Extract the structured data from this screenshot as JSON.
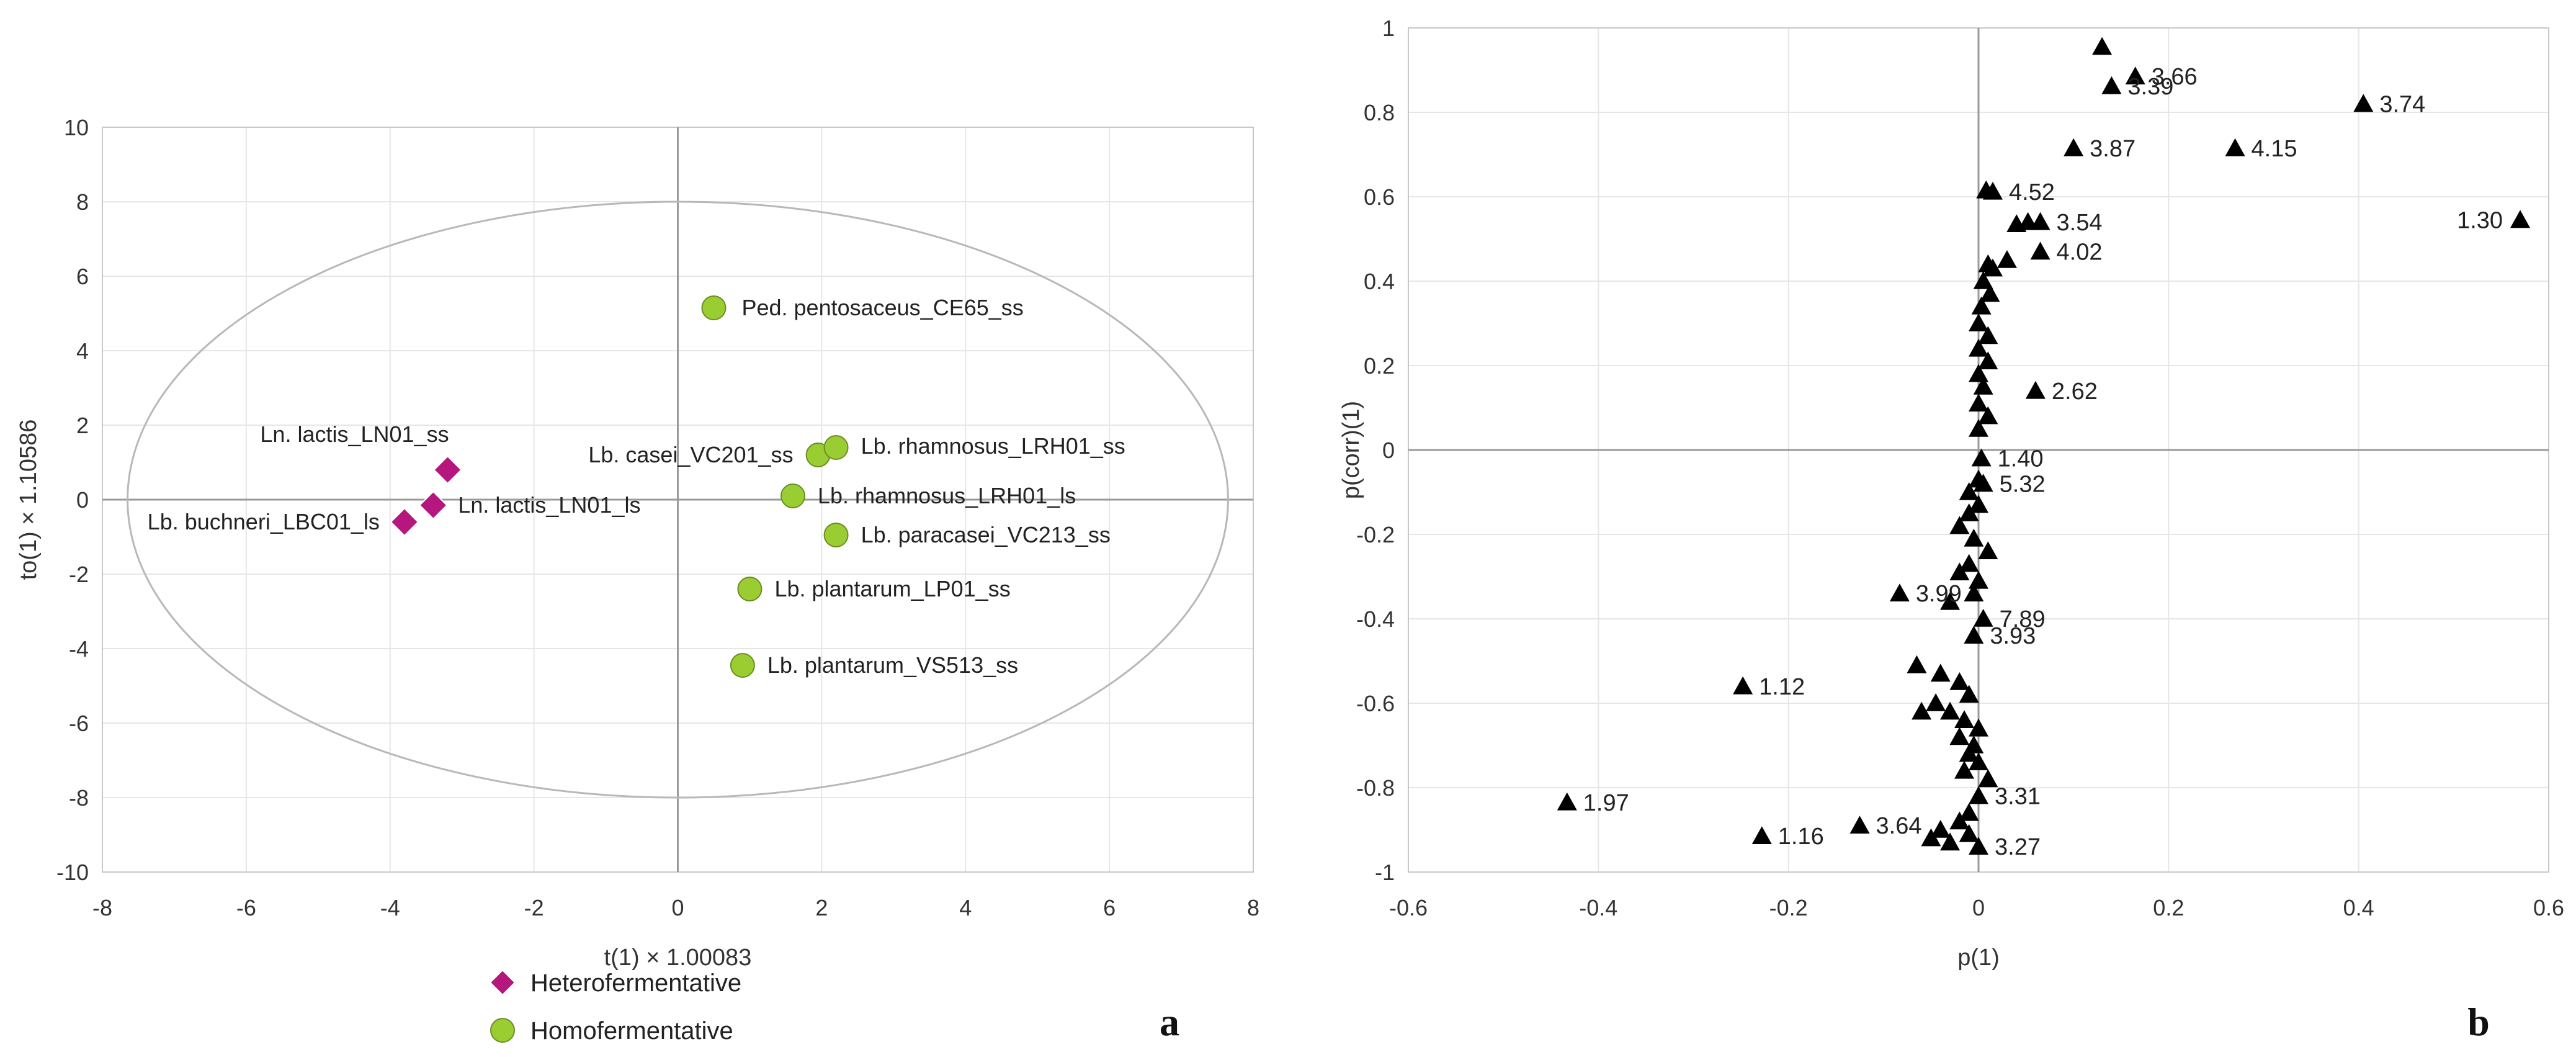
{
  "chart_data": [
    {
      "type": "scatter",
      "panel_letter": "a",
      "xlabel": "t(1) × 1.00083",
      "ylabel": "to(1) × 1.10586",
      "xlim": [
        -8,
        8
      ],
      "ylim": [
        -10,
        10
      ],
      "xticks": [
        -8,
        -6,
        -4,
        -2,
        0,
        2,
        4,
        6,
        8
      ],
      "yticks": [
        -10,
        -8,
        -6,
        -4,
        -2,
        0,
        2,
        4,
        6,
        8,
        10
      ],
      "grid": true,
      "ellipse": {
        "rx": 7.65,
        "ry": 8
      },
      "legend_position": "bottom",
      "series": [
        {
          "name": "Heterofermentative",
          "marker": "diamond",
          "color": "#b5177e",
          "points": [
            {
              "label": "Ln. lactis_LN01_ss",
              "x": -3.2,
              "y": 0.8
            },
            {
              "label": "Ln. lactis_LN01_ls",
              "x": -3.4,
              "y": -0.15
            },
            {
              "label": "Lb. buchneri_LBC01_ls",
              "x": -3.8,
              "y": -0.6
            }
          ]
        },
        {
          "name": "Homofermentative",
          "marker": "circle",
          "color": "#9acd32",
          "points": [
            {
              "label": "Ped. pentosaceus_CE65_ss",
              "x": 0.5,
              "y": 5.15
            },
            {
              "label": "Lb. casei_VC201_ss",
              "x": 1.95,
              "y": 1.2
            },
            {
              "label": "Lb. rhamnosus_LRH01_ss",
              "x": 2.2,
              "y": 1.4
            },
            {
              "label": "Lb. rhamnosus_LRH01_ls",
              "x": 1.6,
              "y": 0.1
            },
            {
              "label": "Lb. paracasei_VC213_ss",
              "x": 2.2,
              "y": -0.95
            },
            {
              "label": "Lb. plantarum_LP01_ss",
              "x": 1.0,
              "y": -2.4
            },
            {
              "label": "Lb. plantarum_VS513_ss",
              "x": 0.9,
              "y": -4.45
            }
          ]
        }
      ]
    },
    {
      "type": "scatter",
      "panel_letter": "b",
      "xlabel": "p(1)",
      "ylabel": "p(corr)(1)",
      "xlim": [
        -0.6,
        0.6
      ],
      "ylim": [
        -1,
        1
      ],
      "xticks": [
        -0.6,
        -0.4,
        -0.2,
        0,
        0.2,
        0.4,
        0.6
      ],
      "yticks": [
        -1,
        -0.8,
        -0.6,
        -0.4,
        -0.2,
        0,
        0.2,
        0.4,
        0.6,
        0.8,
        1
      ],
      "marker": "triangle",
      "color": "#000000",
      "labeled_points": [
        {
          "label": "3.66",
          "x": 0.165,
          "y": 0.885
        },
        {
          "label": "3.39",
          "x": 0.14,
          "y": 0.862
        },
        {
          "label": "3.74",
          "x": 0.405,
          "y": 0.82
        },
        {
          "label": "3.87",
          "x": 0.1,
          "y": 0.715
        },
        {
          "label": "4.15",
          "x": 0.27,
          "y": 0.715
        },
        {
          "label": "4.52",
          "x": 0.015,
          "y": 0.612
        },
        {
          "label": "1.30",
          "x": 0.57,
          "y": 0.545
        },
        {
          "label": "3.54",
          "x": 0.065,
          "y": 0.54
        },
        {
          "label": "4.02",
          "x": 0.065,
          "y": 0.47
        },
        {
          "label": "2.62",
          "x": 0.06,
          "y": 0.14
        },
        {
          "label": "1.40",
          "x": 0.003,
          "y": -0.02
        },
        {
          "label": "5.32",
          "x": 0.005,
          "y": -0.08
        },
        {
          "label": "3.99",
          "x": -0.083,
          "y": -0.34
        },
        {
          "label": "7.89",
          "x": 0.005,
          "y": -0.4
        },
        {
          "label": "3.93",
          "x": -0.005,
          "y": -0.44
        },
        {
          "label": "1.12",
          "x": -0.248,
          "y": -0.56
        },
        {
          "label": "1.97",
          "x": -0.433,
          "y": -0.835
        },
        {
          "label": "3.31",
          "x": 0.0,
          "y": -0.82
        },
        {
          "label": "3.64",
          "x": -0.125,
          "y": -0.89
        },
        {
          "label": "1.16",
          "x": -0.228,
          "y": -0.915
        },
        {
          "label": "3.27",
          "x": 0.0,
          "y": -0.94
        }
      ],
      "unlabeled_points": [
        {
          "x": 0.13,
          "y": 0.955
        },
        {
          "x": 0.008,
          "y": 0.615
        },
        {
          "x": 0.04,
          "y": 0.535
        },
        {
          "x": 0.052,
          "y": 0.54
        },
        {
          "x": 0.01,
          "y": 0.44
        },
        {
          "x": 0.03,
          "y": 0.45
        },
        {
          "x": 0.015,
          "y": 0.43
        },
        {
          "x": 0.005,
          "y": 0.4
        },
        {
          "x": 0.012,
          "y": 0.37
        },
        {
          "x": 0.003,
          "y": 0.34
        },
        {
          "x": 0.0,
          "y": 0.3
        },
        {
          "x": 0.01,
          "y": 0.27
        },
        {
          "x": 0.0,
          "y": 0.24
        },
        {
          "x": 0.01,
          "y": 0.21
        },
        {
          "x": 0.0,
          "y": 0.18
        },
        {
          "x": 0.005,
          "y": 0.15
        },
        {
          "x": 0.0,
          "y": 0.11
        },
        {
          "x": 0.01,
          "y": 0.08
        },
        {
          "x": 0.0,
          "y": 0.05
        },
        {
          "x": 0.0,
          "y": -0.07
        },
        {
          "x": -0.01,
          "y": -0.1
        },
        {
          "x": 0.0,
          "y": -0.13
        },
        {
          "x": -0.01,
          "y": -0.15
        },
        {
          "x": -0.02,
          "y": -0.18
        },
        {
          "x": -0.005,
          "y": -0.21
        },
        {
          "x": 0.01,
          "y": -0.24
        },
        {
          "x": -0.01,
          "y": -0.27
        },
        {
          "x": -0.02,
          "y": -0.29
        },
        {
          "x": 0.0,
          "y": -0.31
        },
        {
          "x": -0.005,
          "y": -0.34
        },
        {
          "x": -0.03,
          "y": -0.36
        },
        {
          "x": -0.065,
          "y": -0.51
        },
        {
          "x": -0.04,
          "y": -0.53
        },
        {
          "x": -0.02,
          "y": -0.55
        },
        {
          "x": -0.01,
          "y": -0.58
        },
        {
          "x": -0.045,
          "y": -0.6
        },
        {
          "x": -0.06,
          "y": -0.62
        },
        {
          "x": -0.03,
          "y": -0.62
        },
        {
          "x": -0.015,
          "y": -0.64
        },
        {
          "x": 0.0,
          "y": -0.66
        },
        {
          "x": -0.02,
          "y": -0.68
        },
        {
          "x": -0.005,
          "y": -0.7
        },
        {
          "x": -0.01,
          "y": -0.72
        },
        {
          "x": 0.0,
          "y": -0.74
        },
        {
          "x": -0.015,
          "y": -0.76
        },
        {
          "x": 0.01,
          "y": -0.78
        },
        {
          "x": -0.01,
          "y": -0.86
        },
        {
          "x": -0.02,
          "y": -0.88
        },
        {
          "x": -0.04,
          "y": -0.9
        },
        {
          "x": -0.05,
          "y": -0.92
        },
        {
          "x": -0.03,
          "y": -0.93
        },
        {
          "x": -0.01,
          "y": -0.91
        }
      ]
    }
  ]
}
